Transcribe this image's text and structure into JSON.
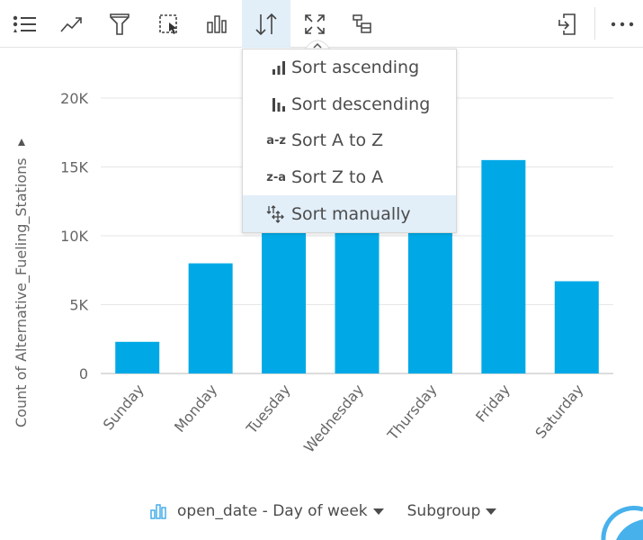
{
  "toolbar": {
    "items": [
      "legend-icon",
      "trend-icon",
      "filter-icon",
      "selection-icon",
      "chart-type-icon",
      "sort-icon",
      "maximize-icon",
      "flip-card-icon"
    ],
    "active": "sort-icon",
    "right": [
      "export-icon",
      "more-icon"
    ]
  },
  "sort_menu": {
    "items": [
      {
        "icon": "sort-ascending-icon",
        "prefix": "",
        "label": "Sort ascending"
      },
      {
        "icon": "sort-descending-icon",
        "prefix": "",
        "label": "Sort descending"
      },
      {
        "icon": "sort-a-z-icon",
        "prefix": "a-z",
        "label": "Sort A to Z"
      },
      {
        "icon": "sort-z-a-icon",
        "prefix": "z-a",
        "label": "Sort Z to A"
      },
      {
        "icon": "sort-manual-icon",
        "prefix": "",
        "label": "Sort manually"
      }
    ],
    "highlighted": 4
  },
  "chart_data": {
    "type": "bar",
    "categories": [
      "Sunday",
      "Monday",
      "Tuesday",
      "Wednesday",
      "Thursday",
      "Friday",
      "Saturday"
    ],
    "values": [
      2300,
      8000,
      12500,
      13000,
      13500,
      15500,
      6700
    ],
    "ylabel": "Count of Alternative_Fueling_Stations",
    "xlabel": "",
    "yticks": [
      {
        "v": 0,
        "label": "0"
      },
      {
        "v": 5000,
        "label": "5K"
      },
      {
        "v": 10000,
        "label": "10K"
      },
      {
        "v": 15000,
        "label": "15K"
      },
      {
        "v": 20000,
        "label": "20K"
      }
    ],
    "ylim": [
      0,
      20000
    ],
    "grid": true,
    "color": "#00a9e6"
  },
  "footer": {
    "x_field": "open_date - Day of week",
    "subgroup": "Subgroup"
  }
}
